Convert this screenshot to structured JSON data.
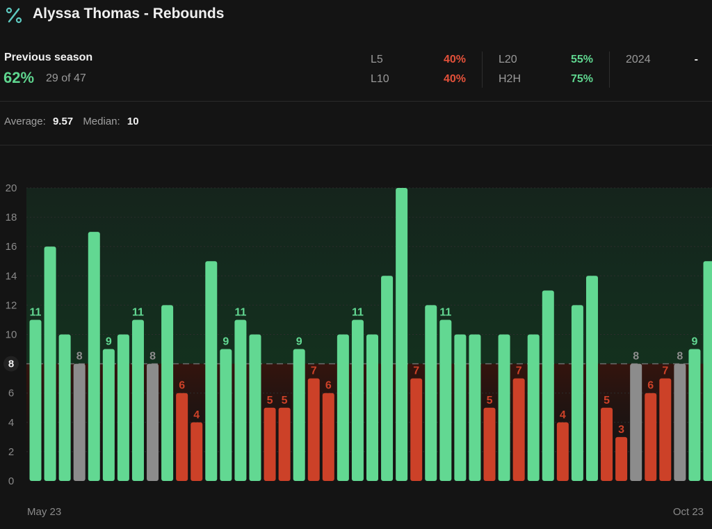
{
  "header": {
    "title": "Alyssa Thomas - Rebounds",
    "icon": "percent-icon"
  },
  "summary": {
    "label": "Previous season",
    "pct": "62%",
    "count": "29 of 47"
  },
  "stats": [
    {
      "label": "L5",
      "value": "40%",
      "status": "red"
    },
    {
      "label": "L10",
      "value": "40%",
      "status": "red"
    },
    {
      "label": "L20",
      "value": "55%",
      "status": "green"
    },
    {
      "label": "H2H",
      "value": "75%",
      "status": "green"
    },
    {
      "label": "2024",
      "value": "-",
      "status": "white"
    }
  ],
  "averages": {
    "average_label": "Average:",
    "average_value": "9.57",
    "median_label": "Median:",
    "median_value": "10"
  },
  "dates": {
    "start": "May 23",
    "end": "Oct 23"
  },
  "colors": {
    "over": "#62d892",
    "under": "#cc4128",
    "push": "#8c8c8c",
    "background": "#141414"
  },
  "chart_data": {
    "type": "bar",
    "line": 8,
    "ylim": [
      0,
      20
    ],
    "yticks": [
      0,
      2,
      4,
      6,
      8,
      10,
      12,
      14,
      16,
      18,
      20
    ],
    "values": [
      11,
      16,
      10,
      8,
      17,
      9,
      10,
      11,
      8,
      12,
      6,
      4,
      15,
      9,
      11,
      10,
      5,
      5,
      9,
      7,
      6,
      10,
      11,
      10,
      14,
      20,
      7,
      12,
      11,
      10,
      10,
      5,
      10,
      7,
      10,
      13,
      4,
      12,
      14,
      5,
      3,
      8,
      6,
      7,
      8,
      9,
      15
    ],
    "labels": [
      "11",
      "",
      "",
      "8",
      "",
      "9",
      "",
      "11",
      "8",
      "",
      "6",
      "4",
      "",
      "9",
      "11",
      "",
      "5",
      "5",
      "9",
      "7",
      "6",
      "",
      "11",
      "",
      "",
      "",
      "7",
      "",
      "11",
      "",
      "",
      "5",
      "",
      "7",
      "",
      "",
      "4",
      "",
      "",
      "5",
      "3",
      "8",
      "6",
      "7",
      "8",
      "9",
      ""
    ],
    "grid": true,
    "legend": "none"
  }
}
